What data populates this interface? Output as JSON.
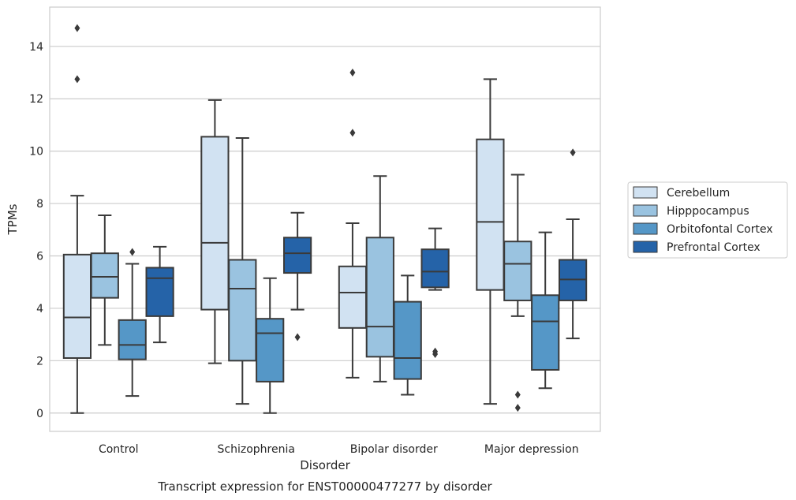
{
  "chart_data": {
    "type": "box",
    "caption": "Transcript expression for ENST00000477277 by disorder",
    "xlabel": "Disorder",
    "ylabel": "TPMs",
    "ylim": [
      -0.7,
      15.5
    ],
    "yticks": [
      0,
      2,
      4,
      6,
      8,
      10,
      12,
      14
    ],
    "grid": "horizontal",
    "legend_position": "right",
    "categories": [
      "Control",
      "Schizophrenia",
      "Bipolar disorder",
      "Major depression"
    ],
    "series": [
      {
        "name": "Cerebellum",
        "color": "#d1e2f2",
        "boxes": [
          {
            "whisker_low": 0.0,
            "q1": 2.1,
            "median": 3.65,
            "q3": 6.05,
            "whisker_high": 8.3,
            "outliers": [
              12.75,
              14.7
            ]
          },
          {
            "whisker_low": 1.9,
            "q1": 3.95,
            "median": 6.5,
            "q3": 10.55,
            "whisker_high": 11.95,
            "outliers": []
          },
          {
            "whisker_low": 1.35,
            "q1": 3.25,
            "median": 4.6,
            "q3": 5.6,
            "whisker_high": 7.25,
            "outliers": [
              10.7,
              13.0
            ]
          },
          {
            "whisker_low": 0.35,
            "q1": 4.7,
            "median": 7.3,
            "q3": 10.45,
            "whisker_high": 12.75,
            "outliers": []
          }
        ]
      },
      {
        "name": "Hipppocampus",
        "color": "#9ac3e0",
        "boxes": [
          {
            "whisker_low": 2.6,
            "q1": 4.4,
            "median": 5.2,
            "q3": 6.1,
            "whisker_high": 7.55,
            "outliers": []
          },
          {
            "whisker_low": 0.35,
            "q1": 2.0,
            "median": 4.75,
            "q3": 5.85,
            "whisker_high": 10.5,
            "outliers": []
          },
          {
            "whisker_low": 1.2,
            "q1": 2.15,
            "median": 3.3,
            "q3": 6.7,
            "whisker_high": 9.05,
            "outliers": []
          },
          {
            "whisker_low": 3.7,
            "q1": 4.3,
            "median": 5.7,
            "q3": 6.55,
            "whisker_high": 9.1,
            "outliers": [
              0.2,
              0.7
            ]
          }
        ]
      },
      {
        "name": "Orbitofontal Cortex",
        "color": "#5597c7",
        "boxes": [
          {
            "whisker_low": 0.65,
            "q1": 2.05,
            "median": 2.6,
            "q3": 3.55,
            "whisker_high": 5.7,
            "outliers": [
              6.15
            ]
          },
          {
            "whisker_low": 0.0,
            "q1": 1.2,
            "median": 3.05,
            "q3": 3.6,
            "whisker_high": 5.15,
            "outliers": []
          },
          {
            "whisker_low": 0.7,
            "q1": 1.3,
            "median": 2.1,
            "q3": 4.25,
            "whisker_high": 5.25,
            "outliers": []
          },
          {
            "whisker_low": 0.95,
            "q1": 1.65,
            "median": 3.5,
            "q3": 4.5,
            "whisker_high": 6.9,
            "outliers": []
          }
        ]
      },
      {
        "name": "Prefrontal Cortex",
        "color": "#2563a8",
        "boxes": [
          {
            "whisker_low": 2.7,
            "q1": 3.7,
            "median": 5.15,
            "q3": 5.55,
            "whisker_high": 6.35,
            "outliers": []
          },
          {
            "whisker_low": 3.95,
            "q1": 5.35,
            "median": 6.1,
            "q3": 6.7,
            "whisker_high": 7.65,
            "outliers": [
              2.9
            ]
          },
          {
            "whisker_low": 4.7,
            "q1": 4.8,
            "median": 5.4,
            "q3": 6.25,
            "whisker_high": 7.05,
            "outliers": [
              2.25,
              2.35
            ]
          },
          {
            "whisker_low": 2.85,
            "q1": 4.3,
            "median": 5.1,
            "q3": 5.85,
            "whisker_high": 7.4,
            "outliers": [
              9.95
            ]
          }
        ]
      }
    ]
  }
}
